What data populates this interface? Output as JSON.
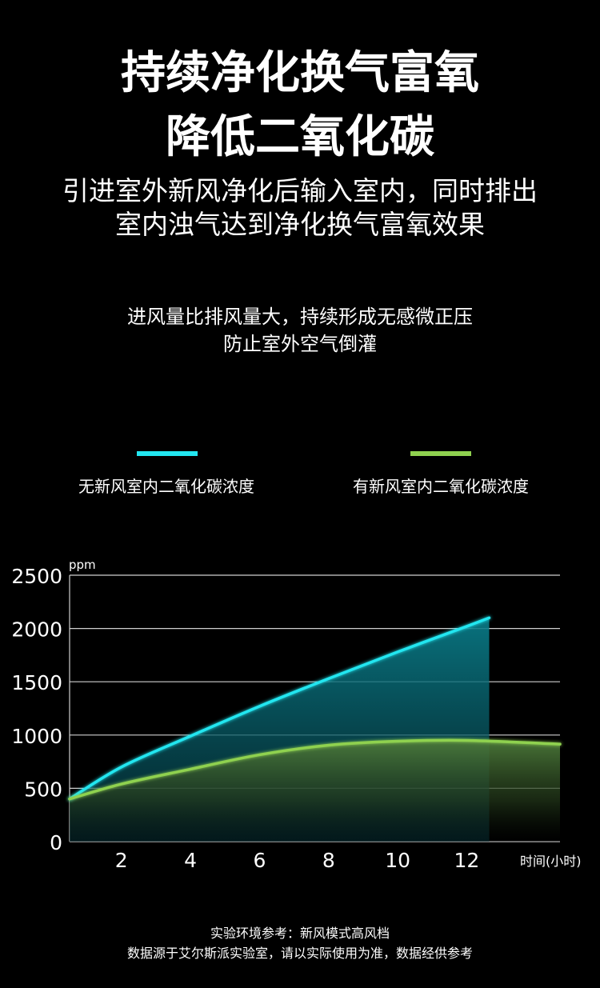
{
  "title_lines": [
    "持续净化换气富氧",
    "降低二氧化碳"
  ],
  "subtitle_lines": [
    "引进室外新风净化后输入室内，同时排出",
    "室内浊气达到净化换气富氧效果"
  ],
  "desc_lines": [
    "进风量比排风量大，持续形成无感微正压",
    "防止室外空气倒灌"
  ],
  "footnote_lines": [
    "实验环境参考：新风模式高风档",
    "数据源于艾尔斯派实验室，请以实际使用为准，数据经供参考"
  ],
  "chart_data": {
    "type": "area",
    "ylabel": "ppm",
    "xlabel": "时间(小时)",
    "ylim": [
      0,
      2500
    ],
    "xlim": [
      0.5,
      14.7
    ],
    "yticks": [
      0,
      500,
      1000,
      1500,
      2000,
      2500
    ],
    "xticks": [
      2,
      4,
      6,
      8,
      10,
      12
    ],
    "grid": true,
    "legend_position": "top",
    "series": [
      {
        "name": "无新风室内二氧化碳浓度",
        "color": "#22e6f0",
        "x": [
          0.5,
          2,
          4,
          6,
          8,
          10,
          12,
          12.65
        ],
        "y": [
          400,
          700,
          990,
          1270,
          1530,
          1780,
          2020,
          2100
        ]
      },
      {
        "name": "有新风室内二氧化碳浓度",
        "color": "#8fd14f",
        "x": [
          0.5,
          2,
          4,
          6,
          8,
          10,
          12,
          14.7
        ],
        "y": [
          400,
          540,
          680,
          815,
          905,
          942,
          950,
          915
        ]
      }
    ]
  }
}
